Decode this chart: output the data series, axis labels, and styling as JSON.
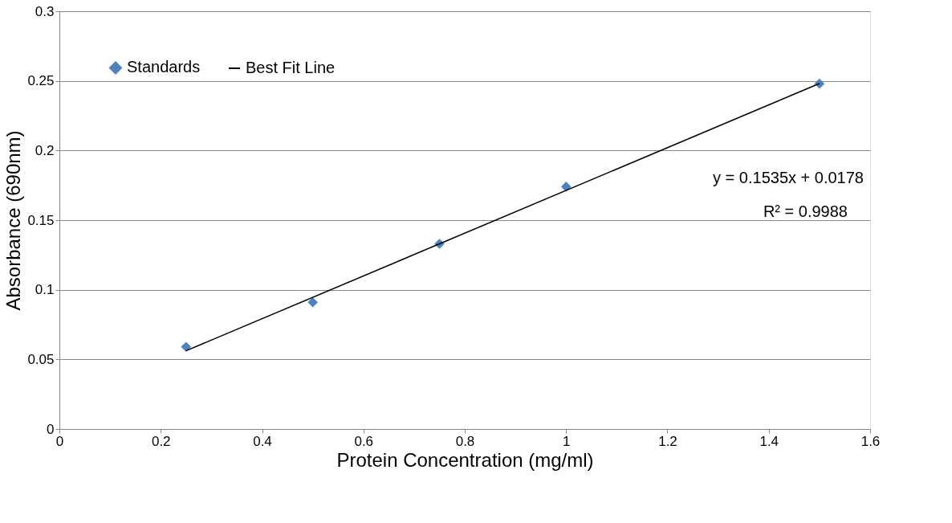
{
  "chart_data": {
    "type": "scatter",
    "xlabel": "Protein Concentration (mg/ml)",
    "ylabel": "Absorbance (690nm)",
    "x": [
      0.25,
      0.5,
      0.75,
      1.0,
      1.5
    ],
    "series": [
      {
        "name": "Standards",
        "color": "#4f81bd",
        "marker": "diamond",
        "values": [
          0.059,
          0.091,
          0.133,
          0.174,
          0.248
        ]
      },
      {
        "name": "Best Fit Line",
        "color": "#000000",
        "type": "line",
        "line_style": "solid",
        "x": [
          0.25,
          1.5
        ],
        "values": [
          0.0562,
          0.2481
        ]
      }
    ],
    "xlim": [
      0,
      1.6
    ],
    "xticks": [
      0,
      0.2,
      0.4,
      0.6,
      0.8,
      1,
      1.2,
      1.4,
      1.6
    ],
    "ylim": [
      0,
      0.3
    ],
    "yticks": [
      0,
      0.05,
      0.1,
      0.15,
      0.2,
      0.25,
      0.3
    ],
    "grid": "y",
    "legend": "top left",
    "annotations": [
      "y = 0.1535x + 0.0178",
      "R² = 0.9988"
    ]
  }
}
